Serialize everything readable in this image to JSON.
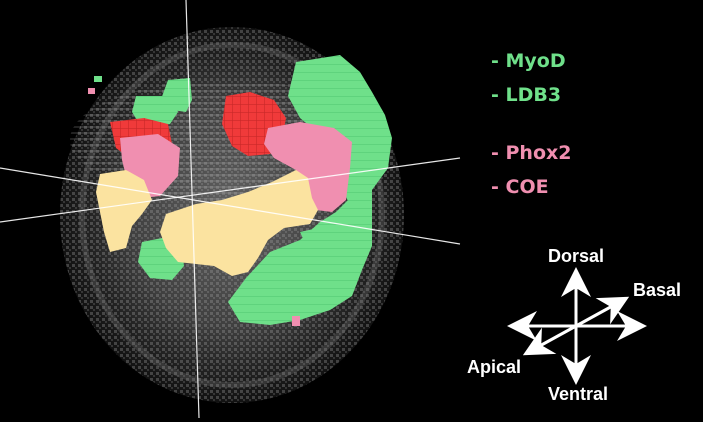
{
  "legend": {
    "green_group": [
      "- MyoD",
      "- LDB3"
    ],
    "pink_group": [
      "- Phox2",
      "- COE"
    ]
  },
  "orientation": {
    "dorsal": "Dorsal",
    "basal": "Basal",
    "apical": "Apical",
    "ventral": "Ventral"
  },
  "colors": {
    "background": "#000000",
    "myod_ldb3_green": "#6FE08A",
    "phox2_coe_pink": "#F08FB0",
    "red_region": "#F03A3A",
    "yellow_region": "#FBE3A0",
    "axis_lines": "#FFFFFF"
  }
}
